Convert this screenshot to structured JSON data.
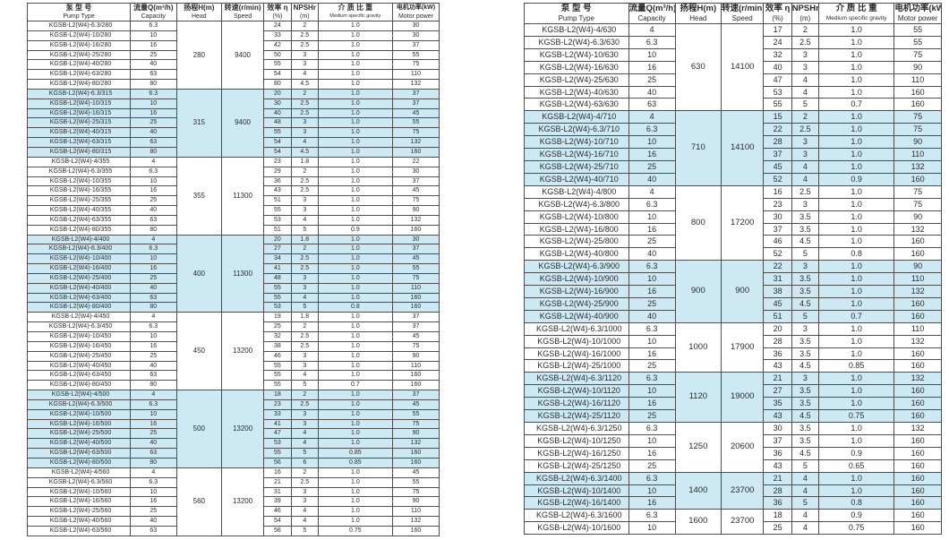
{
  "colors": {
    "highlight_row": "#cdeaf4",
    "border": "#4d4d4d",
    "text": "#2b2b2b"
  },
  "columns": [
    {
      "zh": "泵 型 号",
      "en": "Pump Type"
    },
    {
      "zh": "流量Q(m³/h)",
      "en": "Capacity"
    },
    {
      "zh": "扬程H(m)",
      "en": "Head"
    },
    {
      "zh": "转速(r/min)",
      "en": "Speed"
    },
    {
      "zh": "效率 η",
      "en": "(%)"
    },
    {
      "zh": "NPSHr",
      "en": "(m)"
    },
    {
      "zh": "介 质 比 重",
      "en": "Medium specific gravity"
    },
    {
      "zh": "电机功率(kW)",
      "en": "Motor power"
    }
  ],
  "tables": [
    {
      "id": "left",
      "groups": [
        {
          "head": "280",
          "speed": "9400",
          "highlight": false,
          "rows": [
            [
              "KGSB-L2(W4)-6.3/280",
              "6.3",
              "24",
              "2",
              "1.0",
              "30"
            ],
            [
              "KGSB-L2(W4)-10/280",
              "10",
              "33",
              "2.5",
              "1.0",
              "30"
            ],
            [
              "KGSB-L2(W4)-16/280",
              "16",
              "42",
              "2.5",
              "1.0",
              "37"
            ],
            [
              "KGSB-L2(W4)-25/280",
              "25",
              "50",
              "3",
              "1.0",
              "55"
            ],
            [
              "KGSB-L2(W4)-40/280",
              "40",
              "55",
              "3",
              "1.0",
              "75"
            ],
            [
              "KGSB-L2(W4)-63/280",
              "63",
              "54",
              "4",
              "1.0",
              "110"
            ],
            [
              "KGSB-L2(W4)-80/280",
              "80",
              "80",
              "4.5",
              "1.0",
              "132"
            ]
          ]
        },
        {
          "head": "315",
          "speed": "9400",
          "highlight": true,
          "rows": [
            [
              "KGSB-L2(W4)-6.3/315",
              "6.3",
              "20",
              "2",
              "1.0",
              "37"
            ],
            [
              "KGSB-L2(W4)-10/315",
              "10",
              "30",
              "2.5",
              "1.0",
              "37"
            ],
            [
              "KGSB-L2(W4)-16/315",
              "16",
              "40",
              "2.5",
              "1.0",
              "45"
            ],
            [
              "KGSB-L2(W4)-25/315",
              "25",
              "48",
              "3",
              "1.0",
              "55"
            ],
            [
              "KGSB-L2(W4)-40/315",
              "40",
              "55",
              "3",
              "1.0",
              "75"
            ],
            [
              "KGSB-L2(W4)-63/315",
              "63",
              "54",
              "4",
              "1.0",
              "132"
            ],
            [
              "KGSB-L2(W4)-80/315",
              "80",
              "54",
              "4.5",
              "1.0",
              "160"
            ]
          ]
        },
        {
          "head": "355",
          "speed": "11300",
          "highlight": false,
          "rows": [
            [
              "KGSB-L2(W4)-4/355",
              "4",
              "23",
              "1.8",
              "1.0",
              "22"
            ],
            [
              "KGSB-L2(W4)-6.3/355",
              "6.3",
              "29",
              "2",
              "1.0",
              "30"
            ],
            [
              "KGSB-L2(W4)-10/355",
              "10",
              "36",
              "2.5",
              "1.0",
              "37"
            ],
            [
              "KGSB-L2(W4)-16/355",
              "16",
              "43",
              "2.5",
              "1.0",
              "45"
            ],
            [
              "KGSB-L2(W4)-25/355",
              "25",
              "51",
              "3",
              "1.0",
              "75"
            ],
            [
              "KGSB-L2(W4)-40/355",
              "40",
              "55",
              "3",
              "1.0",
              "90"
            ],
            [
              "KGSB-L2(W4)-63/355",
              "63",
              "53",
              "4",
              "1.0",
              "132"
            ],
            [
              "KGSB-L2(W4)-80/355",
              "80",
              "51",
              "5",
              "0.9",
              "160"
            ]
          ]
        },
        {
          "head": "400",
          "speed": "11300",
          "highlight": true,
          "rows": [
            [
              "KGSB-L2(W4)-4/400",
              "4",
              "20",
              "1.8",
              "1.0",
              "30"
            ],
            [
              "KGSB-L2(W4)-6.3/400",
              "6.3",
              "27",
              "2",
              "1.0",
              "37"
            ],
            [
              "KGSB-L2(W4)-10/400",
              "10",
              "34",
              "2.5",
              "1.0",
              "45"
            ],
            [
              "KGSB-L2(W4)-16/400",
              "16",
              "41",
              "2.5",
              "1.0",
              "55"
            ],
            [
              "KGSB-L2(W4)-25/400",
              "25",
              "48",
              "3",
              "1.0",
              "75"
            ],
            [
              "KGSB-L2(W4)-40/400",
              "40",
              "55",
              "3",
              "1.0",
              "110"
            ],
            [
              "KGSB-L2(W4)-63/400",
              "63",
              "55",
              "4",
              "1.0",
              "160"
            ],
            [
              "KGSB-L2(W4)-80/400",
              "80",
              "53",
              "5",
              "0.8",
              "160"
            ]
          ]
        },
        {
          "head": "450",
          "speed": "13200",
          "highlight": false,
          "rows": [
            [
              "KGSB-L2(W4)-4/450",
              "4",
              "19",
              "1.8",
              "1.0",
              "37"
            ],
            [
              "KGSB-L2(W4)-6.3/450",
              "6.3",
              "25",
              "2",
              "1.0",
              "37"
            ],
            [
              "KGSB-L2(W4)-10/450",
              "10",
              "32",
              "2.5",
              "1.0",
              "45"
            ],
            [
              "KGSB-L2(W4)-16/450",
              "16",
              "38",
              "2.5",
              "1.0",
              "75"
            ],
            [
              "KGSB-L2(W4)-25/450",
              "25",
              "46",
              "3",
              "1.0",
              "90"
            ],
            [
              "KGSB-L2(W4)-40/450",
              "40",
              "55",
              "3",
              "1.0",
              "110"
            ],
            [
              "KGSB-L2(W4)-63/450",
              "63",
              "55",
              "4",
              "1.0",
              "160"
            ],
            [
              "KGSB-L2(W4)-80/450",
              "80",
              "55",
              "5",
              "0.7",
              "160"
            ]
          ]
        },
        {
          "head": "500",
          "speed": "13200",
          "highlight": true,
          "rows": [
            [
              "KGSB-L2(W4)-4/500",
              "4",
              "18",
              "2",
              "1.0",
              "37"
            ],
            [
              "KGSB-L2(W4)-6.3/500",
              "6.3",
              "23",
              "2.5",
              "1.0",
              "45"
            ],
            [
              "KGSB-L2(W4)-10/500",
              "10",
              "33",
              "3",
              "1.0",
              "55"
            ],
            [
              "KGSB-L2(W4)-16/500",
              "16",
              "41",
              "3",
              "1.0",
              "75"
            ],
            [
              "KGSB-L2(W4)-25/500",
              "25",
              "47",
              "4",
              "1.0",
              "90"
            ],
            [
              "KGSB-L2(W4)-40/500",
              "40",
              "53",
              "4",
              "1.0",
              "132"
            ],
            [
              "KGSB-L2(W4)-63/500",
              "63",
              "55",
              "5",
              "0.85",
              "160"
            ],
            [
              "KGSB-L2(W4)-80/500",
              "80",
              "56",
              "6",
              "0.85",
              "160"
            ]
          ]
        },
        {
          "head": "560",
          "speed": "13200",
          "highlight": false,
          "rows": [
            [
              "KGSB-L2(W4)-4/560",
              "4",
              "16",
              "2",
              "1.0",
              "45"
            ],
            [
              "KGSB-L2(W4)-6.3/560",
              "6.3",
              "21",
              "2.5",
              "1.0",
              "55"
            ],
            [
              "KGSB-L2(W4)-10/560",
              "10",
              "31",
              "3",
              "1.0",
              "75"
            ],
            [
              "KGSB-L2(W4)-16/560",
              "16",
              "39",
              "3",
              "1.0",
              "90"
            ],
            [
              "KGSB-L2(W4)-25/560",
              "25",
              "46",
              "4",
              "1.0",
              "110"
            ],
            [
              "KGSB-L2(W4)-40/560",
              "40",
              "54",
              "4",
              "1.0",
              "132"
            ],
            [
              "KGSB-L2(W4)-63/560",
              "63",
              "56",
              "5",
              "0.75",
              "160"
            ]
          ]
        }
      ]
    },
    {
      "id": "right",
      "groups": [
        {
          "head": "630",
          "speed": "14100",
          "highlight": false,
          "rows": [
            [
              "KGSB-L2(W4)-4/630",
              "4",
              "17",
              "2",
              "1.0",
              "55"
            ],
            [
              "KGSB-L2(W4)-6.3/630",
              "6.3",
              "24",
              "2.5",
              "1.0",
              "55"
            ],
            [
              "KGSB-L2(W4)-10/630",
              "10",
              "32",
              "3",
              "1.0",
              "75"
            ],
            [
              "KGSB-L2(W4)-16/630",
              "16",
              "40",
              "3",
              "1.0",
              "90"
            ],
            [
              "KGSB-L2(W4)-25/630",
              "25",
              "47",
              "4",
              "1.0",
              "110"
            ],
            [
              "KGSB-L2(W4)-40/630",
              "40",
              "53",
              "4",
              "1.0",
              "160"
            ],
            [
              "KGSB-L2(W4)-63/630",
              "63",
              "55",
              "5",
              "0.7",
              "160"
            ]
          ]
        },
        {
          "head": "710",
          "speed": "14100",
          "highlight": true,
          "rows": [
            [
              "KGSB-L2(W4)-4/710",
              "4",
              "15",
              "2",
              "1.0",
              "75"
            ],
            [
              "KGSB-L2(W4)-6.3/710",
              "6.3",
              "22",
              "2.5",
              "1.0",
              "75"
            ],
            [
              "KGSB-L2(W4)-10/710",
              "10",
              "28",
              "3",
              "1.0",
              "90"
            ],
            [
              "KGSB-L2(W4)-16/710",
              "16",
              "37",
              "3",
              "1.0",
              "110"
            ],
            [
              "KGSB-L2(W4)-25/710",
              "25",
              "45",
              "4",
              "1.0",
              "132"
            ],
            [
              "KGSB-L2(W4)-40/710",
              "40",
              "52",
              "4",
              "0.9",
              "160"
            ]
          ]
        },
        {
          "head": "800",
          "speed": "17200",
          "highlight": false,
          "rows": [
            [
              "KGSB-L2(W4)-4/800",
              "4",
              "16",
              "2.5",
              "1.0",
              "75"
            ],
            [
              "KGSB-L2(W4)-6.3/800",
              "6.3",
              "23",
              "3",
              "1.0",
              "75"
            ],
            [
              "KGSB-L2(W4)-10/800",
              "10",
              "30",
              "3.5",
              "1.0",
              "90"
            ],
            [
              "KGSB-L2(W4)-16/800",
              "16",
              "37",
              "3.5",
              "1.0",
              "132"
            ],
            [
              "KGSB-L2(W4)-25/800",
              "25",
              "46",
              "4.5",
              "1.0",
              "160"
            ],
            [
              "KGSB-L2(W4)-40/800",
              "40",
              "52",
              "5",
              "0.8",
              "160"
            ]
          ]
        },
        {
          "head": "900",
          "speed": "900",
          "highlight": true,
          "rows": [
            [
              "KGSB-L2(W4)-6.3/900",
              "6.3",
              "22",
              "3",
              "1.0",
              "90"
            ],
            [
              "KGSB-L2(W4)-10/900",
              "10",
              "31",
              "3.5",
              "1.0",
              "110"
            ],
            [
              "KGSB-L2(W4)-16/900",
              "16",
              "38",
              "3.5",
              "1.0",
              "132"
            ],
            [
              "KGSB-L2(W4)-25/900",
              "25",
              "45",
              "4.5",
              "1.0",
              "160"
            ],
            [
              "KGSB-L2(W4)-40/900",
              "40",
              "51",
              "5",
              "0.7",
              "160"
            ]
          ]
        },
        {
          "head": "1000",
          "speed": "17900",
          "highlight": false,
          "rows": [
            [
              "KGSB-L2(W4)-6.3/1000",
              "6.3",
              "20",
              "3",
              "1.0",
              "110"
            ],
            [
              "KGSB-L2(W4)-10/1000",
              "10",
              "28",
              "3.5",
              "1.0",
              "132"
            ],
            [
              "KGSB-L2(W4)-16/1000",
              "16",
              "36",
              "3.5",
              "1.0",
              "160"
            ],
            [
              "KGSB-L2(W4)-25/1000",
              "25",
              "43",
              "4.5",
              "0.85",
              "160"
            ]
          ]
        },
        {
          "head": "1120",
          "speed": "19000",
          "highlight": true,
          "rows": [
            [
              "KGSB-L2(W4)-6.3/1120",
              "6.3",
              "21",
              "3",
              "1.0",
              "132"
            ],
            [
              "KGSB-L2(W4)-10/1120",
              "10",
              "27",
              "3.5",
              "1.0",
              "160"
            ],
            [
              "KGSB-L2(W4)-16/1120",
              "16",
              "35",
              "3.5",
              "1.0",
              "160"
            ],
            [
              "KGSB-L2(W4)-25/1120",
              "25",
              "43",
              "4.5",
              "0.75",
              "160"
            ]
          ]
        },
        {
          "head": "1250",
          "speed": "20600",
          "highlight": false,
          "rows": [
            [
              "KGSB-L2(W4)-6.3/1250",
              "6.3",
              "30",
              "3.5",
              "1.0",
              "132"
            ],
            [
              "KGSB-L2(W4)-10/1250",
              "10",
              "37",
              "3.5",
              "1.0",
              "160"
            ],
            [
              "KGSB-L2(W4)-16/1250",
              "16",
              "36",
              "4.5",
              "0.9",
              "160"
            ],
            [
              "KGSB-L2(W4)-25/1250",
              "25",
              "43",
              "5",
              "0.65",
              "160"
            ]
          ]
        },
        {
          "head": "1400",
          "speed": "23700",
          "highlight": true,
          "rows": [
            [
              "KGSB-L2(W4)-6.3/1400",
              "6.3",
              "21",
              "4",
              "1.0",
              "160"
            ],
            [
              "KGSB-L2(W4)-10/1400",
              "10",
              "28",
              "4",
              "1.0",
              "160"
            ],
            [
              "KGSB-L2(W4)-16/1400",
              "16",
              "36",
              "5",
              "0.8",
              "160"
            ]
          ]
        },
        {
          "head": "1600",
          "speed": "23700",
          "highlight": false,
          "rows": [
            [
              "KGSB-L2(W4)-6.3/1600",
              "6.3",
              "18",
              "4",
              "0.9",
              "160"
            ],
            [
              "KGSB-L2(W4)-10/1600",
              "10",
              "25",
              "4",
              "0.75",
              "160"
            ]
          ]
        }
      ]
    }
  ]
}
